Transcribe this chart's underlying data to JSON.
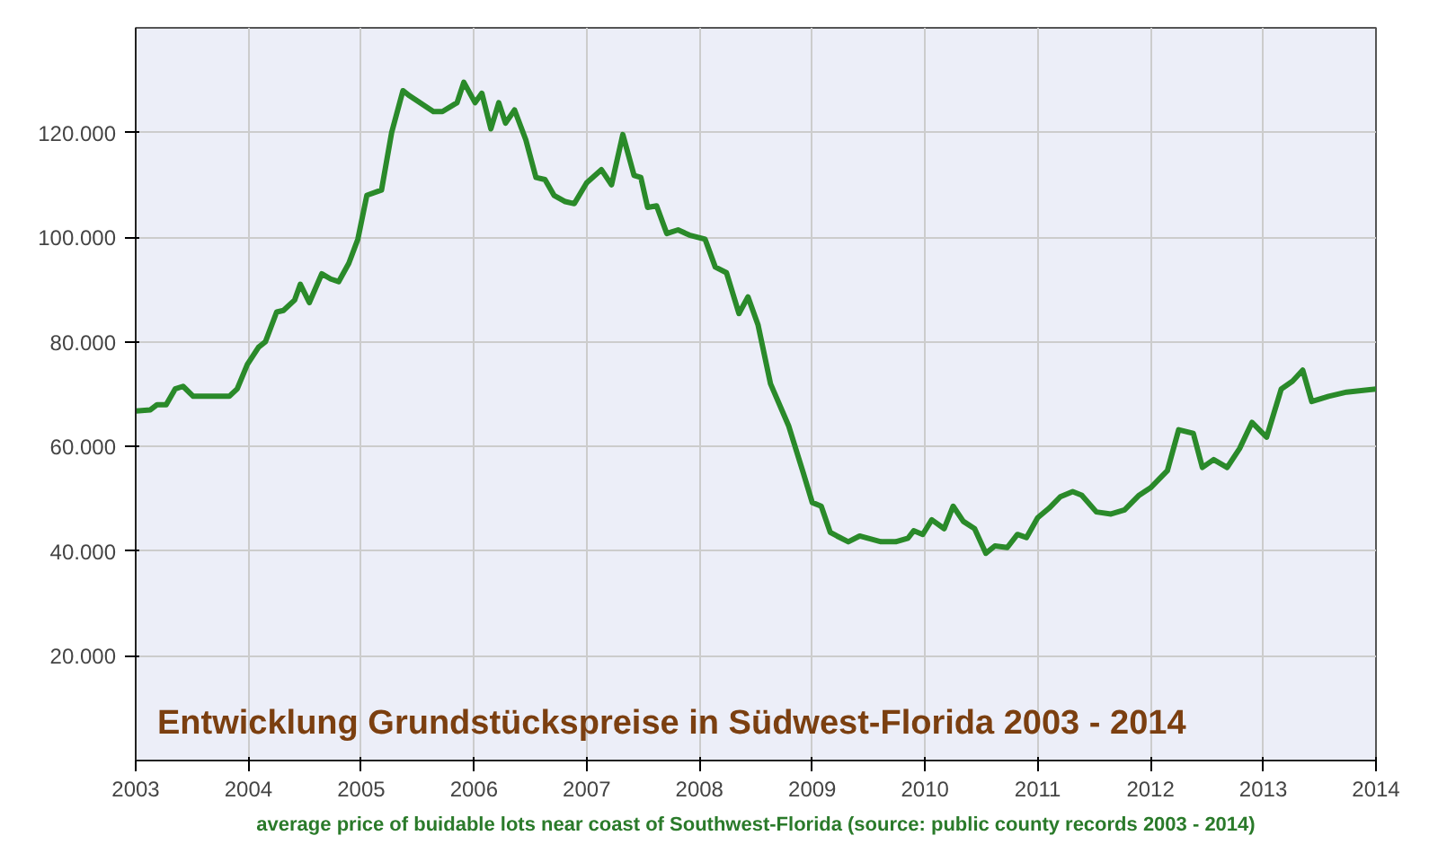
{
  "chart_data": {
    "type": "line",
    "title": "Entwicklung Grundstückspreise in Südwest-Florida 2003 - 2014",
    "annotations": [
      "average price of buidable lots near coast of Southwest-Florida (source: public county records 2003 - 2014)"
    ],
    "xlim": [
      2003,
      2014
    ],
    "xticks": [
      2003,
      2004,
      2005,
      2006,
      2007,
      2008,
      2009,
      2010,
      2011,
      2012,
      2013,
      2014
    ],
    "ylim": [
      0,
      140000
    ],
    "yticks": [
      {
        "value": 20000,
        "label": "20.000"
      },
      {
        "value": 40000,
        "label": "40.000"
      },
      {
        "value": 60000,
        "label": "60.000"
      },
      {
        "value": 80000,
        "label": "80.000"
      },
      {
        "value": 100000,
        "label": "100.000"
      },
      {
        "value": 120000,
        "label": "120.000"
      }
    ],
    "grid": true,
    "marker": "none",
    "line_style": "solid",
    "series": [
      {
        "color": "#2a8a2a",
        "x": [
          2003.0,
          2003.13,
          2003.19,
          2003.27,
          2003.35,
          2003.42,
          2003.51,
          2003.64,
          2003.83,
          2003.9,
          2003.99,
          2004.09,
          2004.15,
          2004.25,
          2004.31,
          2004.41,
          2004.46,
          2004.54,
          2004.65,
          2004.73,
          2004.8,
          2004.89,
          2004.97,
          2005.05,
          2005.18,
          2005.27,
          2005.37,
          2005.43,
          2005.64,
          2005.72,
          2005.85,
          2005.91,
          2006.01,
          2006.07,
          2006.15,
          2006.22,
          2006.28,
          2006.36,
          2006.46,
          2006.55,
          2006.63,
          2006.71,
          2006.81,
          2006.89,
          2007.0,
          2007.13,
          2007.22,
          2007.32,
          2007.42,
          2007.48,
          2007.54,
          2007.62,
          2007.71,
          2007.81,
          2007.91,
          2008.05,
          2008.14,
          2008.24,
          2008.35,
          2008.43,
          2008.52,
          2008.63,
          2008.79,
          2008.92,
          2009.0,
          2009.08,
          2009.16,
          2009.22,
          2009.32,
          2009.42,
          2009.61,
          2009.74,
          2009.85,
          2009.9,
          2009.98,
          2010.06,
          2010.17,
          2010.25,
          2010.34,
          2010.44,
          2010.54,
          2010.62,
          2010.73,
          2010.82,
          2010.9,
          2011.0,
          2011.1,
          2011.2,
          2011.31,
          2011.39,
          2011.52,
          2011.65,
          2011.77,
          2011.9,
          2012.0,
          2012.15,
          2012.25,
          2012.38,
          2012.46,
          2012.56,
          2012.68,
          2012.79,
          2012.9,
          2013.03,
          2013.16,
          2013.26,
          2013.35,
          2013.43,
          2013.58,
          2013.74,
          2014.0
        ],
        "values": [
          66800,
          67000,
          68000,
          68000,
          71000,
          71500,
          69600,
          69600,
          69600,
          71000,
          75700,
          79000,
          80000,
          85700,
          86000,
          88000,
          91000,
          87500,
          93000,
          92000,
          91500,
          95000,
          99600,
          108000,
          109000,
          120000,
          128000,
          127000,
          124000,
          124000,
          125700,
          129600,
          125700,
          127500,
          120700,
          125700,
          121800,
          124300,
          118600,
          111400,
          111000,
          108000,
          106800,
          106400,
          110400,
          112900,
          110000,
          119600,
          111800,
          111400,
          105700,
          106000,
          100700,
          101400,
          100400,
          99600,
          94300,
          93200,
          85400,
          88600,
          83200,
          72000,
          64000,
          55000,
          49300,
          48600,
          43600,
          42900,
          41800,
          42900,
          41800,
          41800,
          42500,
          43900,
          43200,
          46000,
          44300,
          48600,
          45700,
          44300,
          39600,
          41000,
          40700,
          43200,
          42600,
          46400,
          48200,
          50400,
          51400,
          50700,
          47500,
          47100,
          47900,
          50700,
          52100,
          55400,
          63200,
          62500,
          56000,
          57500,
          56000,
          59600,
          64600,
          61800,
          71000,
          72500,
          74600,
          68600,
          69600,
          70400,
          71000
        ]
      }
    ]
  }
}
